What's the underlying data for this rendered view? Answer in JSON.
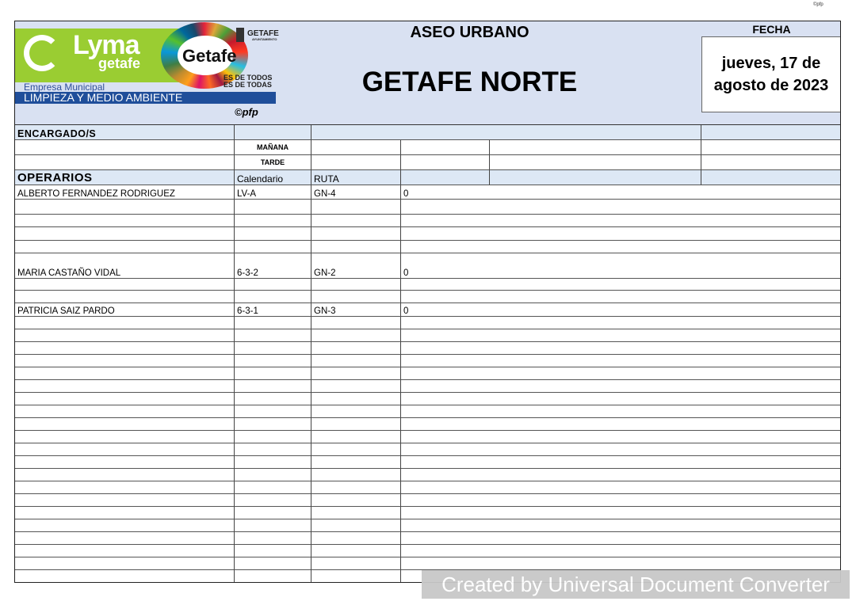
{
  "top_mark": "©pfp",
  "logo": {
    "brand": "Lyma",
    "brand_sub": "getafe",
    "getafe": "Getafe",
    "ayto": "GETAFE",
    "ayto_sub": "AYUNTAMIENTO",
    "slogan1": "ES DE TODOS",
    "slogan2": "ES DE TODAS",
    "empresa": "Empresa Municipal",
    "dept": "LIMPIEZA Y MEDIO AMBIENTE",
    "copyright": "©pfp"
  },
  "header": {
    "title": "ASEO URBANO",
    "subtitle": "GETAFE NORTE",
    "fecha_label": "FECHA",
    "fecha_line1": "jueves, 17 de",
    "fecha_line2": "agosto de 2023"
  },
  "encargados": {
    "label": "ENCARGADO/S",
    "manana": "MAÑANA",
    "tarde": "TARDE"
  },
  "operarios": {
    "headers": [
      "OPERARIOS",
      "Calendario",
      "RUTA",
      ""
    ],
    "rows": [
      [
        "ALBERTO FERNANDEZ RODRIGUEZ",
        "LV-A",
        "GN-4",
        "0"
      ],
      [
        "",
        "",
        "",
        ""
      ],
      [
        "",
        "",
        "",
        ""
      ],
      [
        "",
        "",
        "",
        ""
      ],
      [
        "",
        "",
        "",
        ""
      ],
      [
        "MARIA CASTAÑO VIDAL",
        "6-3-2",
        "GN-2",
        "0"
      ],
      [
        "",
        "",
        "",
        ""
      ],
      [
        "",
        "",
        "",
        ""
      ],
      [
        "PATRICIA SAIZ PARDO",
        "6-3-1",
        "GN-3",
        "0"
      ],
      [
        "",
        "",
        "",
        ""
      ],
      [
        "",
        "",
        "",
        ""
      ],
      [
        "",
        "",
        "",
        ""
      ],
      [
        "",
        "",
        "",
        ""
      ],
      [
        "",
        "",
        "",
        ""
      ],
      [
        "",
        "",
        "",
        ""
      ],
      [
        "",
        "",
        "",
        ""
      ],
      [
        "",
        "",
        "",
        ""
      ],
      [
        "",
        "",
        "",
        ""
      ],
      [
        "",
        "",
        "",
        ""
      ],
      [
        "",
        "",
        "",
        ""
      ],
      [
        "",
        "",
        "",
        ""
      ],
      [
        "",
        "",
        "",
        ""
      ],
      [
        "",
        "",
        "",
        ""
      ],
      [
        "",
        "",
        "",
        ""
      ],
      [
        "",
        "",
        "",
        ""
      ],
      [
        "",
        "",
        "",
        ""
      ],
      [
        "",
        "",
        "",
        ""
      ],
      [
        "",
        "",
        "",
        ""
      ],
      [
        "",
        "",
        "",
        ""
      ],
      [
        "",
        "",
        "",
        ""
      ]
    ]
  },
  "watermark": "Created by Universal Document Converter"
}
